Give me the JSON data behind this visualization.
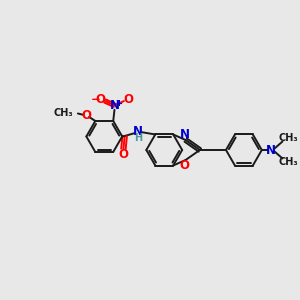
{
  "background_color": "#e8e8e8",
  "bond_color": "#1a1a1a",
  "heteroatom_colors": {
    "O": "#ff0000",
    "N": "#0000cc",
    "H": "#4a9a9a"
  },
  "figsize": [
    3.0,
    3.0
  ],
  "dpi": 100,
  "xlim": [
    0,
    12
  ],
  "ylim": [
    0,
    12
  ]
}
